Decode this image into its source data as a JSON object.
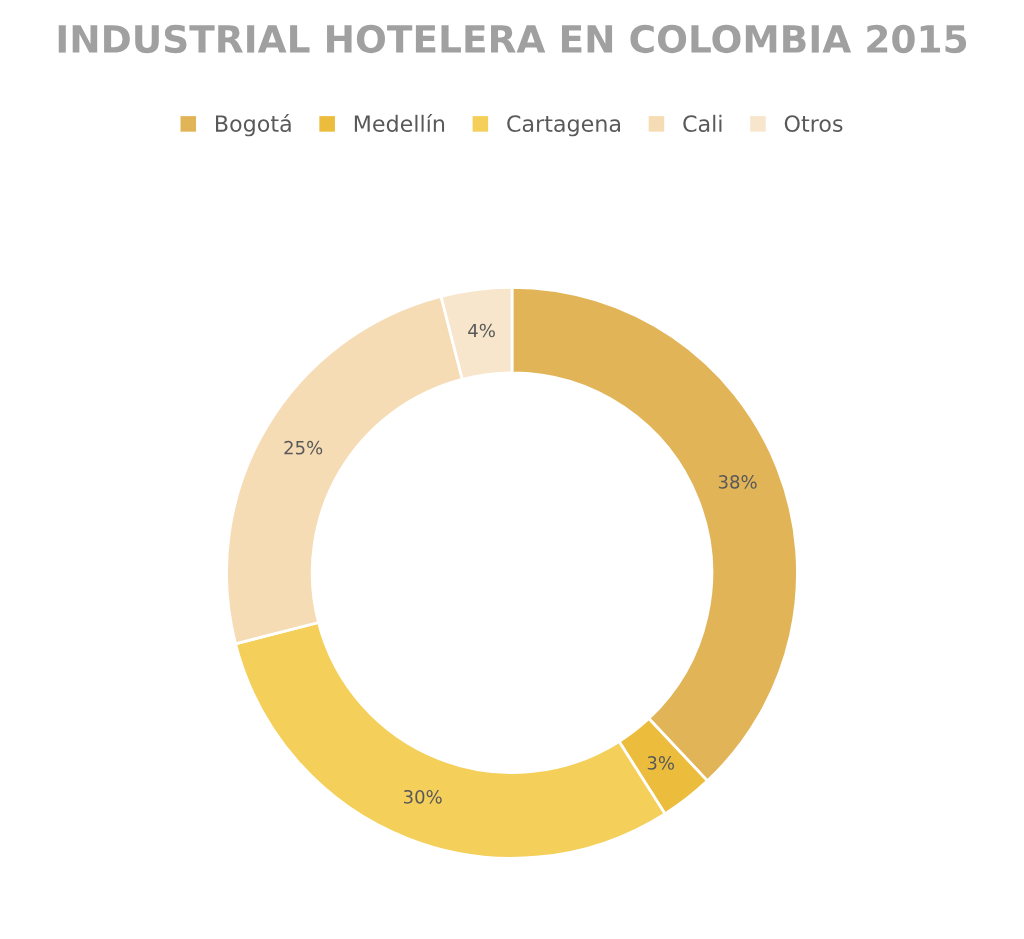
{
  "chart_data": {
    "type": "donut",
    "title": "INDUSTRIAL HOTELERA EN COLOMBIA 2015",
    "categories": [
      "Bogotá",
      "Medellín",
      "Cartagena",
      "Cali",
      "Otros"
    ],
    "values": [
      38,
      3,
      30,
      25,
      4
    ],
    "colors": [
      "#e2b458",
      "#ecbc3c",
      "#f4cf5a",
      "#f6dcb4",
      "#f8e6cc"
    ],
    "value_labels": [
      "38%",
      "3%",
      "30%",
      "25%",
      "4%"
    ],
    "legend": "top"
  }
}
